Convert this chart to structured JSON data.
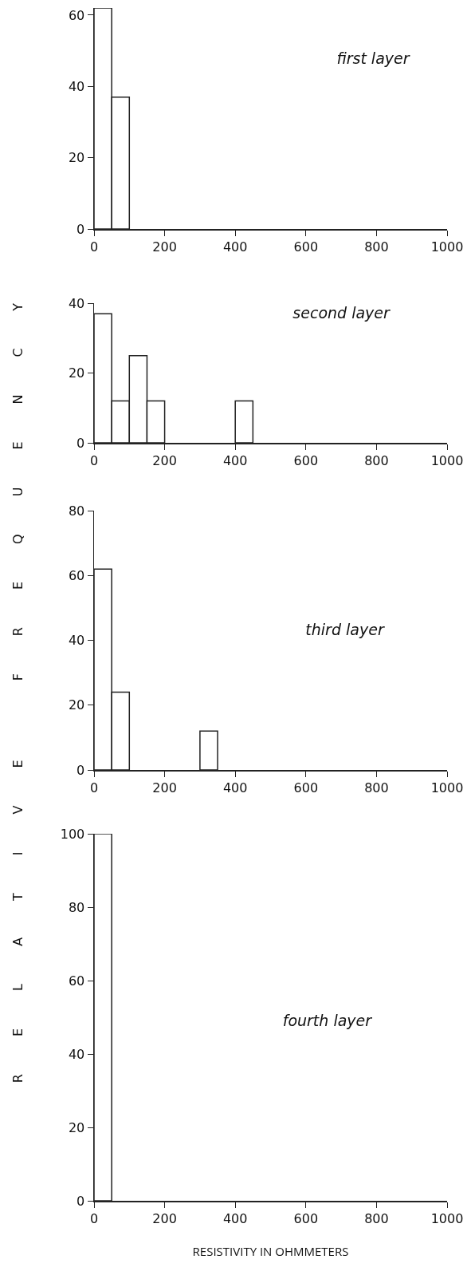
{
  "chart_data": [
    {
      "type": "histogram",
      "title": "first layer",
      "ylabel": "RELATIVE FREQUENCY",
      "bins": [
        0,
        50,
        100
      ],
      "values": [
        62,
        37
      ],
      "color": "#ffffff",
      "xlim": [
        0,
        1000
      ],
      "xticks": [
        0,
        200,
        400,
        600,
        800,
        1000
      ],
      "ylim": [
        0,
        62
      ],
      "yticks": [
        0,
        20,
        40,
        60
      ],
      "grid": false
    },
    {
      "type": "histogram",
      "title": "second layer",
      "bins": [
        0,
        50,
        100,
        150,
        200,
        400,
        450
      ],
      "values": [
        37,
        12,
        25,
        12,
        0,
        12
      ],
      "color": "#ffffff",
      "xlim": [
        0,
        1000
      ],
      "xticks": [
        0,
        200,
        400,
        600,
        800,
        1000
      ],
      "ylim": [
        0,
        40
      ],
      "yticks": [
        0,
        20,
        40
      ],
      "grid": false
    },
    {
      "type": "histogram",
      "title": "third layer",
      "bins": [
        0,
        50,
        100,
        300,
        350
      ],
      "values": [
        62,
        24,
        0,
        12
      ],
      "color": "#ffffff",
      "xlim": [
        0,
        1000
      ],
      "xticks": [
        0,
        200,
        400,
        600,
        800,
        1000
      ],
      "ylim": [
        0,
        80
      ],
      "yticks": [
        0,
        20,
        40,
        60,
        80
      ],
      "grid": false
    },
    {
      "type": "histogram",
      "title": "fourth layer",
      "xlabel": "RESISTIVITY IN OHMMETERS",
      "bins": [
        0,
        50
      ],
      "values": [
        100
      ],
      "color": "#ffffff",
      "xlim": [
        0,
        1000
      ],
      "xticks": [
        0,
        200,
        400,
        600,
        800,
        1000
      ],
      "ylim": [
        0,
        100
      ],
      "yticks": [
        0,
        20,
        40,
        60,
        80,
        100
      ],
      "grid": false
    }
  ]
}
